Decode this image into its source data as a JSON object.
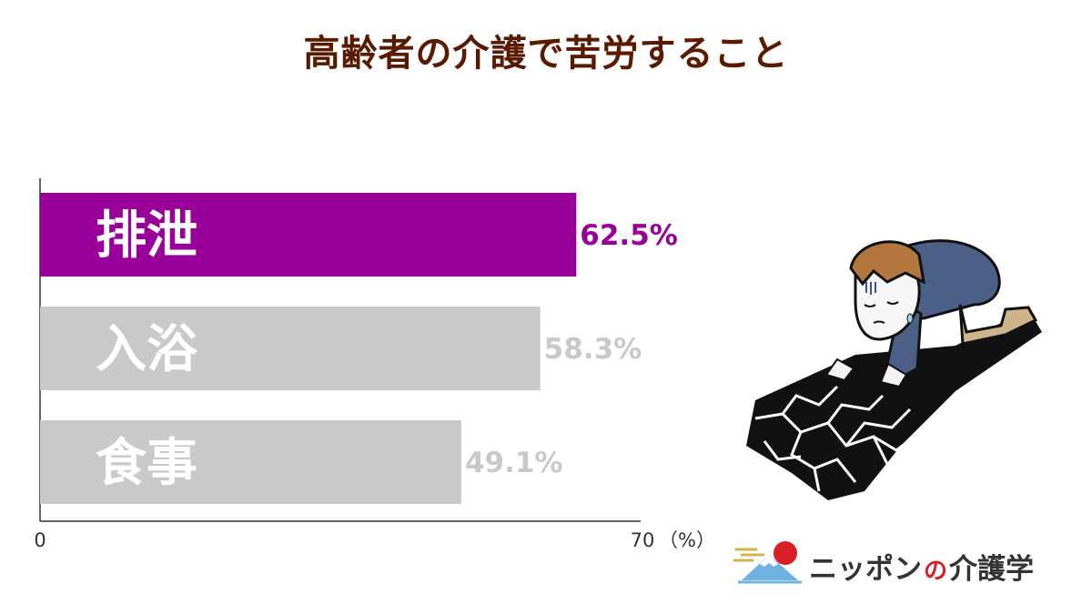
{
  "title": "高齢者の介護で苦労すること",
  "colors": {
    "title": "#5a1a00",
    "highlight_bar": "#990099",
    "muted_bar": "#c9c9c9",
    "axis": "#333333",
    "highlight_text": "#990099",
    "muted_text": "#c9c9c9",
    "bar_text": "#ffffff"
  },
  "chart_data": {
    "type": "bar",
    "orientation": "horizontal",
    "categories": [
      "排泄",
      "入浴",
      "食事"
    ],
    "values": [
      62.5,
      58.3,
      49.1
    ],
    "value_labels": [
      "62.5%",
      "58.3%",
      "49.1%"
    ],
    "xlim": [
      0,
      70
    ],
    "x_ticks": [
      "0",
      "70"
    ],
    "x_unit": "（%）",
    "highlight_index": 0,
    "grid": false,
    "legend": "none"
  },
  "logo": {
    "prefix": "ニッポン",
    "connector": "の",
    "suffix": "介護学"
  }
}
